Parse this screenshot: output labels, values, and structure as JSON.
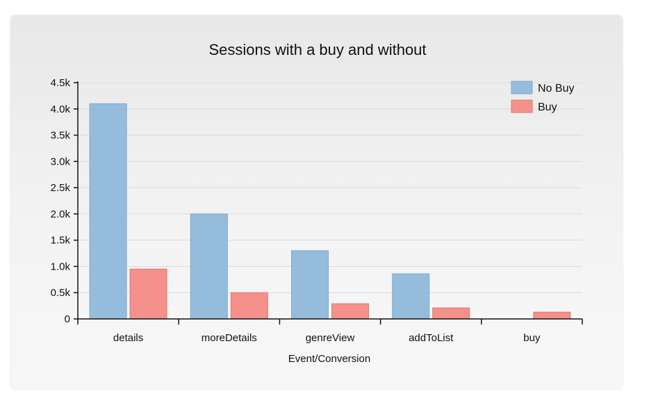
{
  "chart_data": {
    "type": "bar",
    "title": "Sessions with a buy and without",
    "xlabel": "Event/Conversion",
    "ylabel": "",
    "categories": [
      "details",
      "moreDetails",
      "genreView",
      "addToList",
      "buy"
    ],
    "series": [
      {
        "name": "No Buy",
        "values": [
          4100,
          2000,
          1300,
          860,
          0
        ],
        "color": "#96bcdc"
      },
      {
        "name": "Buy",
        "values": [
          950,
          500,
          290,
          210,
          130
        ],
        "color": "#f4918a"
      }
    ],
    "ylim": [
      0,
      4500
    ],
    "yticks": [
      0,
      500,
      1000,
      1500,
      2000,
      2500,
      3000,
      3500,
      4000,
      4500
    ],
    "ytick_labels": [
      "0",
      "0.5k",
      "1.0k",
      "1.5k",
      "2.0k",
      "2.5k",
      "3.0k",
      "3.5k",
      "4.0k",
      "4.5k"
    ],
    "grid": true,
    "legend_position": "top-right"
  }
}
